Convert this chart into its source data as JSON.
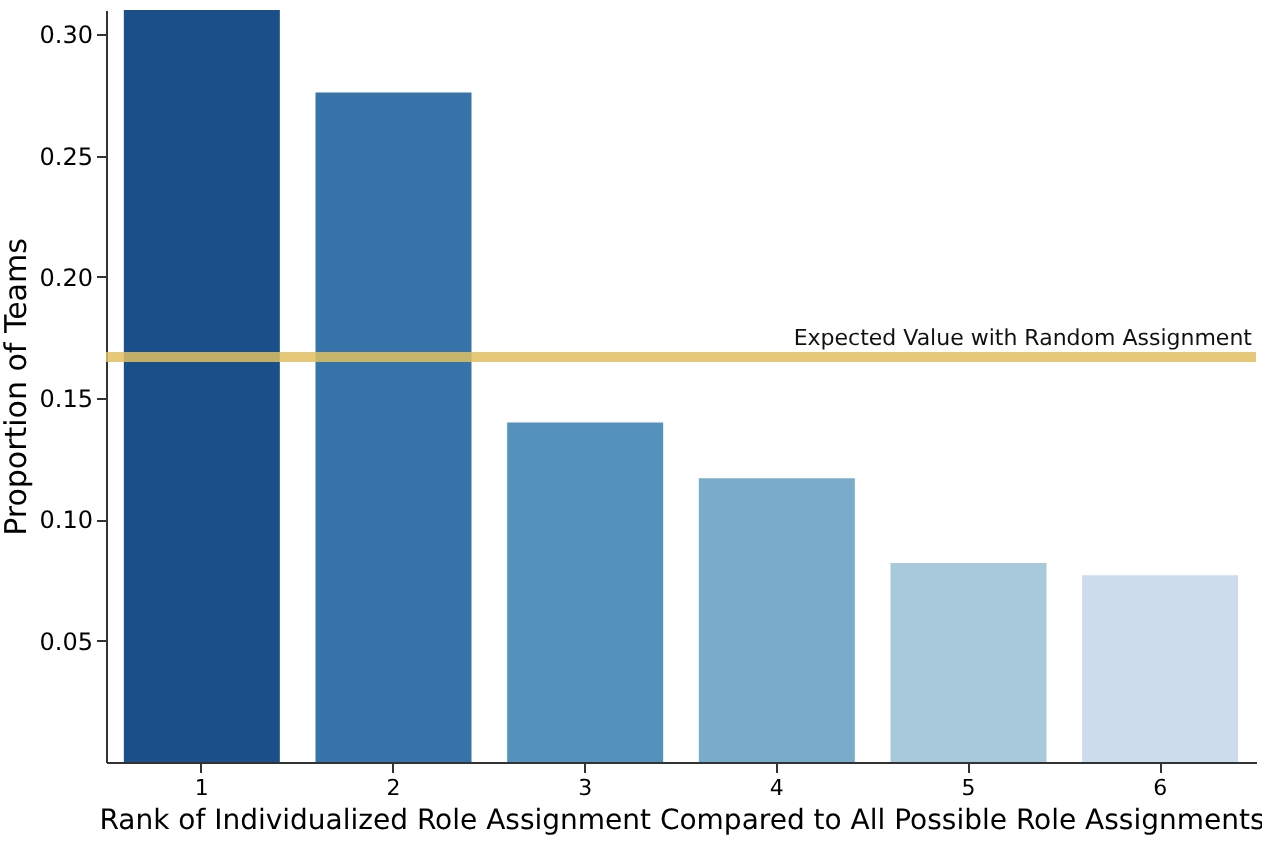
{
  "chart_data": {
    "type": "bar",
    "xlabel": "Rank of Individualized Role Assignment Compared to All Possible Role Assignments",
    "ylabel": "Proportion of Teams",
    "categories": [
      "1",
      "2",
      "3",
      "4",
      "5",
      "6"
    ],
    "values": [
      0.31,
      0.276,
      0.14,
      0.117,
      0.082,
      0.077
    ],
    "colors": [
      "#1a4f8a",
      "#3573a8",
      "#5591bd",
      "#7aabcb",
      "#a8c8dc",
      "#ccdcec"
    ],
    "ylim": [
      0,
      0.31
    ],
    "yticks": [
      0.05,
      {
        "value": 0.1,
        "label": "0.10"
      },
      0.15,
      {
        "value": 0.2,
        "label": "0.20"
      },
      0.25,
      {
        "value": 0.3,
        "label": "0.30"
      }
    ],
    "grid": false,
    "ref_lines": [
      {
        "axis": "y",
        "value": 0.167,
        "label": "Expected Value with Random Assignment",
        "color": "#e0c060"
      }
    ]
  }
}
